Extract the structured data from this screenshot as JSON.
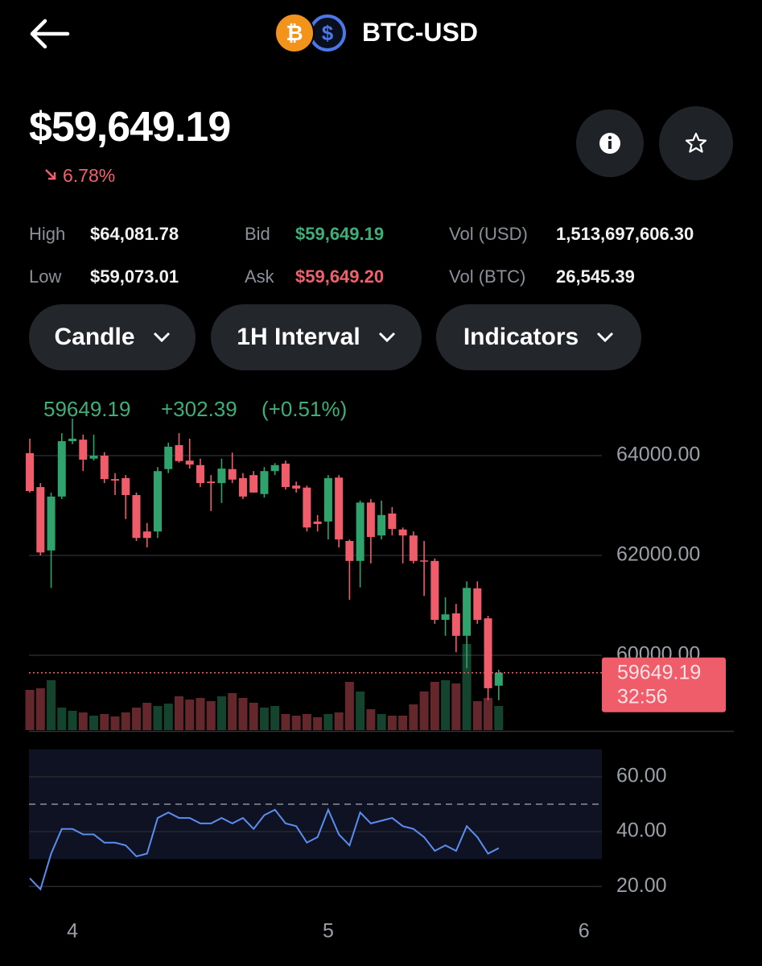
{
  "header": {
    "title": "BTC-USD"
  },
  "price": "$59,649.19",
  "change": "6.78%",
  "stats": [
    {
      "label": "High",
      "value": "$64,081.78"
    },
    {
      "label": "Low",
      "value": "$59,073.01"
    },
    {
      "label": "Bid",
      "value": "$59,649.19"
    },
    {
      "label": "Ask",
      "value": "$59,649.20"
    },
    {
      "label": "Vol (USD)",
      "value": "1,513,697,606.30"
    },
    {
      "label": "Vol (BTC)",
      "value": "26,545.39"
    }
  ],
  "controls": [
    "Candle",
    "1H Interval",
    "Indicators"
  ],
  "chart_data": [
    {
      "type": "candlestick",
      "last": "59649.19",
      "change": "+302.39",
      "change_pct": "(+0.51%)",
      "x": [
        3.8333,
        3.875,
        3.9167,
        3.9583,
        4,
        4.0417,
        4.0833,
        4.125,
        4.1667,
        4.2083,
        4.25,
        4.2917,
        4.3333,
        4.375,
        4.4167,
        4.4583,
        4.5,
        4.5417,
        4.5833,
        4.625,
        4.6667,
        4.7083,
        4.75,
        4.7917,
        4.8333,
        4.875,
        4.9167,
        4.9583,
        5,
        5.0417,
        5.0833,
        5.125,
        5.1667,
        5.2083,
        5.25,
        5.2917,
        5.3333,
        5.375,
        5.4167,
        5.4583,
        5.5,
        5.5417,
        5.5833,
        5.625,
        5.6667
      ],
      "open": [
        64050,
        63370,
        62100,
        63180,
        64290,
        64320,
        63940,
        64000,
        63530,
        63550,
        63210,
        62480,
        62480,
        63730,
        64210,
        63900,
        63810,
        63480,
        63450,
        63730,
        63550,
        63610,
        63230,
        63690,
        63840,
        63400,
        63360,
        62680,
        62680,
        63560,
        62290,
        61890,
        63060,
        62400,
        62840,
        62520,
        62400,
        61900,
        61890,
        60710,
        60840,
        60390,
        61340,
        60740,
        59390
      ],
      "high": [
        64340,
        63450,
        63260,
        64450,
        64740,
        64420,
        64420,
        64070,
        63650,
        63610,
        63260,
        62650,
        63770,
        64260,
        64450,
        64340,
        63940,
        63610,
        63940,
        64060,
        63650,
        63690,
        63770,
        63850,
        63900,
        63480,
        63400,
        62810,
        63610,
        63610,
        62320,
        63100,
        63130,
        63100,
        62970,
        62560,
        62480,
        62290,
        61940,
        61160,
        61030,
        61480,
        61480,
        60790,
        59710
      ],
      "low": [
        63260,
        62000,
        61350,
        63130,
        64230,
        63690,
        63900,
        63450,
        63210,
        62730,
        62290,
        62160,
        62350,
        63650,
        63860,
        63740,
        63370,
        62890,
        63050,
        63450,
        63130,
        63260,
        63160,
        63610,
        63320,
        63260,
        62480,
        62480,
        62320,
        62160,
        61110,
        61360,
        61840,
        62320,
        62400,
        61840,
        61840,
        61190,
        60630,
        60390,
        60060,
        59740,
        60630,
        59100,
        59100
      ],
      "close": [
        63290,
        62060,
        63180,
        64290,
        64340,
        63920,
        64000,
        63530,
        63500,
        63210,
        62350,
        62350,
        63690,
        64180,
        63890,
        63820,
        63450,
        63450,
        63740,
        63520,
        63180,
        63260,
        63690,
        63810,
        63370,
        63340,
        62560,
        62630,
        63550,
        62320,
        61890,
        63060,
        62370,
        62810,
        62530,
        62400,
        61890,
        61890,
        60710,
        60820,
        60390,
        61350,
        60710,
        59340,
        59650
      ],
      "volumes": [
        50,
        52,
        62,
        28,
        24,
        22,
        18,
        20,
        17,
        22,
        28,
        34,
        30,
        33,
        42,
        38,
        40,
        36,
        42,
        46,
        40,
        34,
        28,
        30,
        20,
        18,
        20,
        16,
        20,
        22,
        60,
        48,
        26,
        20,
        18,
        18,
        32,
        48,
        60,
        62,
        58,
        107,
        36,
        40,
        30
      ],
      "colors": {
        "up": "#2fa36b",
        "down": "#ef5c6a"
      },
      "xlim": [
        3.83,
        6.07
      ],
      "ylim": [
        58500,
        64500
      ],
      "yticks": [
        {
          "value": 60000,
          "label": "60000.00"
        },
        {
          "value": 62000,
          "label": "62000.00"
        },
        {
          "value": 64000,
          "label": "64000.00"
        }
      ],
      "grid": true,
      "current": {
        "value": 59649.19,
        "label": "59649.19"
      },
      "countdown": "32:56"
    },
    {
      "type": "line",
      "x": [
        3.8333,
        3.875,
        3.9167,
        3.9583,
        4,
        4.0417,
        4.0833,
        4.125,
        4.1667,
        4.2083,
        4.25,
        4.2917,
        4.3333,
        4.375,
        4.4167,
        4.4583,
        4.5,
        4.5417,
        4.5833,
        4.625,
        4.6667,
        4.7083,
        4.75,
        4.7917,
        4.8333,
        4.875,
        4.9167,
        4.9583,
        5,
        5.0417,
        5.0833,
        5.125,
        5.1667,
        5.2083,
        5.25,
        5.2917,
        5.3333,
        5.375,
        5.4167,
        5.4583,
        5.5,
        5.5417,
        5.5833,
        5.625,
        5.6667
      ],
      "values": [
        23,
        19,
        32,
        41,
        41,
        39,
        39,
        36,
        36,
        35,
        31,
        32,
        45,
        47,
        45,
        45,
        43,
        43,
        45,
        43,
        45,
        41,
        46,
        48,
        43,
        42,
        36,
        38,
        48,
        39,
        35,
        47,
        43,
        44,
        45,
        42,
        41,
        38,
        33,
        35,
        33,
        42,
        38,
        32,
        34
      ],
      "color": "#5b8def",
      "xlim": [
        3.83,
        6.07
      ],
      "ylim": [
        11,
        72
      ],
      "yticks": [
        {
          "value": 20,
          "label": "20.00"
        },
        {
          "value": 40,
          "label": "40.00"
        },
        {
          "value": 60,
          "label": "60.00"
        }
      ],
      "xticks": [
        4,
        5,
        6
      ],
      "band": [
        30,
        70
      ],
      "midline": 50
    }
  ]
}
